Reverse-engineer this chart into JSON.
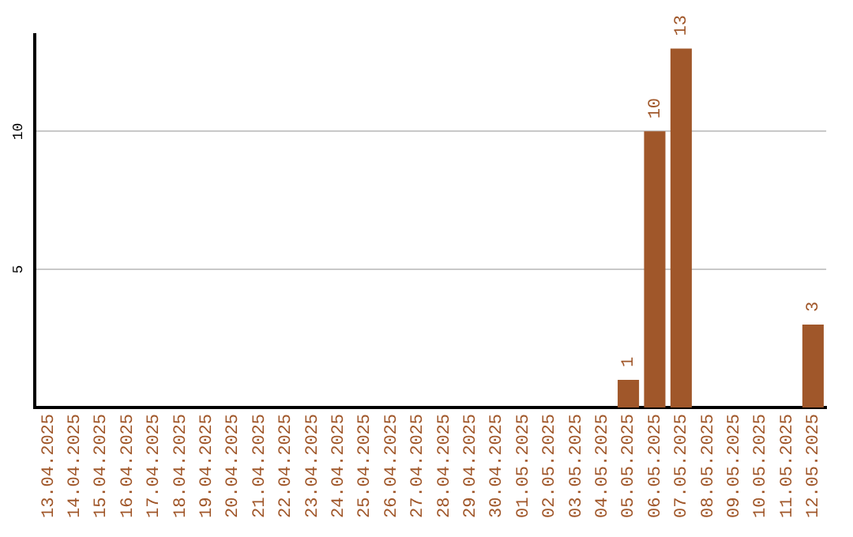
{
  "chart_data": {
    "type": "bar",
    "categories": [
      "13.04.2025",
      "14.04.2025",
      "15.04.2025",
      "16.04.2025",
      "17.04.2025",
      "18.04.2025",
      "19.04.2025",
      "20.04.2025",
      "21.04.2025",
      "22.04.2025",
      "23.04.2025",
      "24.04.2025",
      "25.04.2025",
      "26.04.2025",
      "27.04.2025",
      "28.04.2025",
      "29.04.2025",
      "30.04.2025",
      "01.05.2025",
      "02.05.2025",
      "03.05.2025",
      "04.05.2025",
      "05.05.2025",
      "06.05.2025",
      "07.05.2025",
      "08.05.2025",
      "09.05.2025",
      "10.05.2025",
      "11.05.2025",
      "12.05.2025"
    ],
    "values": [
      0,
      0,
      0,
      0,
      0,
      0,
      0,
      0,
      0,
      0,
      0,
      0,
      0,
      0,
      0,
      0,
      0,
      0,
      0,
      0,
      0,
      0,
      1,
      10,
      13,
      0,
      0,
      0,
      0,
      3
    ],
    "value_labels": [
      null,
      null,
      null,
      null,
      null,
      null,
      null,
      null,
      null,
      null,
      null,
      null,
      null,
      null,
      null,
      null,
      null,
      null,
      null,
      null,
      null,
      null,
      "1",
      "10",
      "13",
      null,
      null,
      null,
      null,
      "3"
    ],
    "color": "#a0572a",
    "ylim": [
      0,
      13.5
    ],
    "yticks": [
      5,
      10
    ],
    "grid": "y",
    "legend": false
  }
}
